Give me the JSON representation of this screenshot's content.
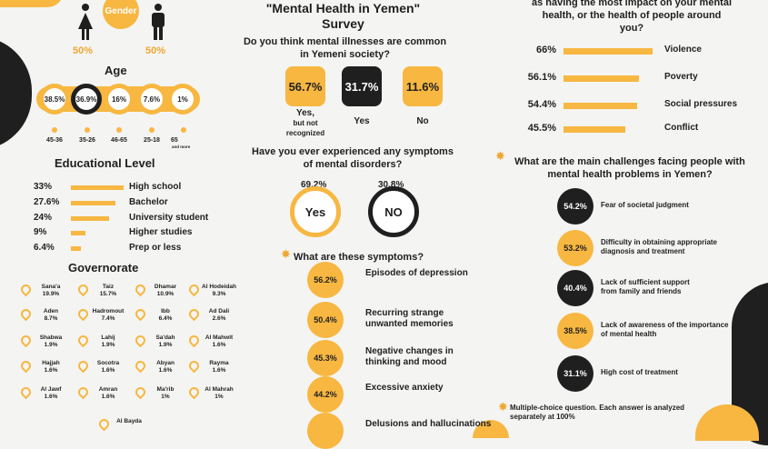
{
  "gender": {
    "title": "Gender",
    "female_pct": "50%",
    "male_pct": "50%"
  },
  "age": {
    "title": "Age",
    "items": [
      {
        "pct": "38.5%",
        "range": "45-36",
        "sub": ""
      },
      {
        "pct": "36.9%",
        "range": "35-26",
        "sub": ""
      },
      {
        "pct": "16%",
        "range": "46-65",
        "sub": ""
      },
      {
        "pct": "7.6%",
        "range": "25-18",
        "sub": ""
      },
      {
        "pct": "1%",
        "range": "65",
        "sub": "and more"
      }
    ]
  },
  "education": {
    "title": "Educational Level",
    "items": [
      {
        "pct": "33%",
        "label": "High school",
        "value": 33
      },
      {
        "pct": "27.6%",
        "label": "Bachelor",
        "value": 27.6
      },
      {
        "pct": "24%",
        "label": "University student",
        "value": 24
      },
      {
        "pct": "9%",
        "label": "Higher studies",
        "value": 9
      },
      {
        "pct": "6.4%",
        "label": "Prep or less",
        "value": 6.4
      }
    ]
  },
  "governorate": {
    "title": "Governorate",
    "items": [
      {
        "name": "Sana'a",
        "pct": "19.9%"
      },
      {
        "name": "Taiz",
        "pct": "15.7%"
      },
      {
        "name": "Dhamar",
        "pct": "10.9%"
      },
      {
        "name": "Al Hodeidah",
        "pct": "9.3%"
      },
      {
        "name": "Aden",
        "pct": "8.7%"
      },
      {
        "name": "Hadromout",
        "pct": "7.4%"
      },
      {
        "name": "Ibb",
        "pct": "6.4%"
      },
      {
        "name": "Ad Dali",
        "pct": "2.6%"
      },
      {
        "name": "Shabwa",
        "pct": "1.9%"
      },
      {
        "name": "Lahij",
        "pct": "1.9%"
      },
      {
        "name": "Sa'dah",
        "pct": "1.9%"
      },
      {
        "name": "Al Mahwit",
        "pct": "1.6%"
      },
      {
        "name": "Hajjah",
        "pct": "1.6%"
      },
      {
        "name": "Socotra",
        "pct": "1.6%"
      },
      {
        "name": "Abyan",
        "pct": "1.6%"
      },
      {
        "name": "Rayma",
        "pct": "1.6%"
      },
      {
        "name": "Al Jawf",
        "pct": "1.6%"
      },
      {
        "name": "Amran",
        "pct": "1.6%"
      },
      {
        "name": "Ma'rib",
        "pct": "1%"
      },
      {
        "name": "Al Mahrah",
        "pct": "1%"
      },
      {
        "name": "Al Bayda",
        "pct": ""
      }
    ]
  },
  "survey": {
    "title_line1": "\"Mental Health in Yemen\"",
    "title_line2": "Survey"
  },
  "q1": {
    "question_line1": "Do you think mental illnesses are common",
    "question_line2": "in Yemeni society?",
    "answers": [
      {
        "pct": "56.7%",
        "label_line1": "Yes,",
        "label_line2": "but not",
        "label_line3": "recognized"
      },
      {
        "pct": "31.7%",
        "label_line1": "Yes",
        "label_line2": "",
        "label_line3": ""
      },
      {
        "pct": "11.6%",
        "label_line1": "No",
        "label_line2": "",
        "label_line3": ""
      }
    ]
  },
  "q2": {
    "question_line1": "Have you ever experienced any symptoms",
    "question_line2": "of mental disorders?",
    "yes_pct": "69.2%",
    "yes_label": "Yes",
    "no_pct": "30.8%",
    "no_label": "NO"
  },
  "symptoms": {
    "title": "What are these symptoms?",
    "items": [
      {
        "pct": "56.2%",
        "line1": "Episodes of depression",
        "line2": ""
      },
      {
        "pct": "50.4%",
        "line1": "Recurring strange",
        "line2": "unwanted memories"
      },
      {
        "pct": "45.3%",
        "line1": "Negative changes in",
        "line2": "thinking and mood"
      },
      {
        "pct": "44.2%",
        "line1": "Excessive anxiety",
        "line2": ""
      },
      {
        "pct": "",
        "line1": "Delusions and hallucinations",
        "line2": ""
      }
    ]
  },
  "impact": {
    "title_line1": "as having the most impact on your mental",
    "title_line2": "health, or the health of people around",
    "title_line3": "you?",
    "items": [
      {
        "pct": "66%",
        "label": "Violence",
        "value": 66
      },
      {
        "pct": "56.1%",
        "label": "Poverty",
        "value": 56.1
      },
      {
        "pct": "54.4%",
        "label": "Social pressures",
        "value": 54.4
      },
      {
        "pct": "45.5%",
        "label": "Conflict",
        "value": 45.5
      }
    ]
  },
  "challenges": {
    "title_line1": "What are the main challenges facing people with",
    "title_line2": "mental health problems in Yemen?",
    "items": [
      {
        "pct": "54.2%",
        "line1": "Fear of societal judgment",
        "line2": ""
      },
      {
        "pct": "53.2%",
        "line1": "Difficulty in obtaining appropriate",
        "line2": "diagnosis and treatment"
      },
      {
        "pct": "40.4%",
        "line1": "Lack of sufficient support",
        "line2": "from family and friends"
      },
      {
        "pct": "38.5%",
        "line1": "Lack of awareness of the importance",
        "line2": "of mental health"
      },
      {
        "pct": "31.1%",
        "line1": "High cost of treatment",
        "line2": ""
      }
    ]
  },
  "note": {
    "line1": "Multiple-choice question. Each answer is analyzed",
    "line2": "separately at 100%"
  },
  "colors": {
    "accent": "#f7b741",
    "dark": "#1f1f1f",
    "background": "#f4f4f2"
  }
}
